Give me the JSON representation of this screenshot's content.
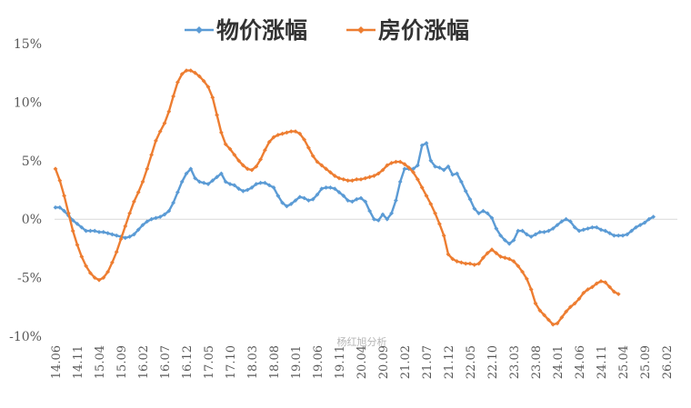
{
  "chart_data": {
    "type": "line",
    "watermark": "杨红旭分析",
    "ylim": [
      -10,
      15
    ],
    "yticks": [
      -10,
      -5,
      0,
      5,
      10,
      15
    ],
    "ytick_labels": [
      "-10%",
      "-5%",
      "0%",
      "5%",
      "10%",
      "15%"
    ],
    "zero_line": true,
    "legend": "top-center",
    "x_start": "2014-06",
    "x_count": 142,
    "xtick_labels": [
      "14.06",
      "14.11",
      "15.04",
      "15.09",
      "16.02",
      "16.07",
      "16.12",
      "17.05",
      "17.10",
      "18.03",
      "18.08",
      "19.01",
      "19.06",
      "19.11",
      "20.04",
      "20.09",
      "21.02",
      "21.07",
      "21.12",
      "22.05",
      "22.10",
      "23.03",
      "23.08",
      "24.01",
      "24.06",
      "24.11",
      "25.04",
      "25.09",
      "26.02"
    ],
    "series": [
      {
        "name": "物价涨幅",
        "color": "#5B9BD5",
        "points": [
          [
            0,
            1.0
          ],
          [
            1,
            1.0
          ],
          [
            2,
            0.7
          ],
          [
            3,
            0.3
          ],
          [
            4,
            -0.1
          ],
          [
            5,
            -0.4
          ],
          [
            6,
            -0.7
          ],
          [
            7,
            -1.0
          ],
          [
            8,
            -1.0
          ],
          [
            9,
            -1.0
          ],
          [
            10,
            -1.1
          ],
          [
            11,
            -1.1
          ],
          [
            12,
            -1.2
          ],
          [
            13,
            -1.3
          ],
          [
            14,
            -1.4
          ],
          [
            15,
            -1.5
          ],
          [
            16,
            -1.6
          ],
          [
            17,
            -1.5
          ],
          [
            18,
            -1.3
          ],
          [
            19,
            -0.9
          ],
          [
            20,
            -0.5
          ],
          [
            21,
            -0.2
          ],
          [
            22,
            0.0
          ],
          [
            23,
            0.1
          ],
          [
            24,
            0.2
          ],
          [
            25,
            0.4
          ],
          [
            26,
            0.7
          ],
          [
            27,
            1.4
          ],
          [
            28,
            2.3
          ],
          [
            29,
            3.2
          ],
          [
            30,
            3.9
          ],
          [
            31,
            4.3
          ],
          [
            32,
            3.5
          ],
          [
            33,
            3.2
          ],
          [
            34,
            3.1
          ],
          [
            35,
            3.0
          ],
          [
            36,
            3.3
          ],
          [
            37,
            3.6
          ],
          [
            38,
            3.9
          ],
          [
            39,
            3.2
          ],
          [
            40,
            3.0
          ],
          [
            41,
            2.9
          ],
          [
            42,
            2.6
          ],
          [
            43,
            2.4
          ],
          [
            44,
            2.5
          ],
          [
            45,
            2.7
          ],
          [
            46,
            3.0
          ],
          [
            47,
            3.1
          ],
          [
            48,
            3.1
          ],
          [
            49,
            2.9
          ],
          [
            50,
            2.7
          ],
          [
            51,
            2.0
          ],
          [
            52,
            1.4
          ],
          [
            53,
            1.1
          ],
          [
            54,
            1.3
          ],
          [
            55,
            1.6
          ],
          [
            56,
            1.9
          ],
          [
            57,
            1.8
          ],
          [
            58,
            1.6
          ],
          [
            59,
            1.7
          ],
          [
            60,
            2.1
          ],
          [
            61,
            2.6
          ],
          [
            62,
            2.7
          ],
          [
            63,
            2.7
          ],
          [
            64,
            2.6
          ],
          [
            65,
            2.3
          ],
          [
            66,
            2.0
          ],
          [
            67,
            1.6
          ],
          [
            68,
            1.5
          ],
          [
            69,
            1.7
          ],
          [
            70,
            1.8
          ],
          [
            71,
            1.5
          ],
          [
            72,
            0.7
          ],
          [
            73,
            0.0
          ],
          [
            74,
            -0.1
          ],
          [
            75,
            0.4
          ],
          [
            76,
            0.0
          ],
          [
            77,
            0.5
          ],
          [
            78,
            1.6
          ],
          [
            79,
            3.2
          ],
          [
            80,
            4.3
          ],
          [
            81,
            4.3
          ],
          [
            82,
            4.3
          ],
          [
            83,
            4.6
          ],
          [
            84,
            6.3
          ],
          [
            85,
            6.5
          ],
          [
            86,
            5.0
          ],
          [
            87,
            4.5
          ],
          [
            88,
            4.4
          ],
          [
            89,
            4.2
          ],
          [
            90,
            4.5
          ],
          [
            91,
            3.8
          ],
          [
            92,
            3.9
          ],
          [
            93,
            3.2
          ],
          [
            94,
            2.4
          ],
          [
            95,
            1.7
          ],
          [
            96,
            0.9
          ],
          [
            97,
            0.5
          ],
          [
            98,
            0.7
          ],
          [
            99,
            0.5
          ],
          [
            100,
            0.1
          ],
          [
            101,
            -0.8
          ],
          [
            102,
            -1.4
          ],
          [
            103,
            -1.8
          ],
          [
            104,
            -2.1
          ],
          [
            105,
            -1.8
          ],
          [
            106,
            -1.0
          ],
          [
            107,
            -1.0
          ],
          [
            108,
            -1.3
          ],
          [
            109,
            -1.5
          ],
          [
            110,
            -1.3
          ],
          [
            111,
            -1.1
          ],
          [
            112,
            -1.1
          ],
          [
            113,
            -1.0
          ],
          [
            114,
            -0.8
          ],
          [
            115,
            -0.5
          ],
          [
            116,
            -0.2
          ],
          [
            117,
            0.0
          ],
          [
            118,
            -0.2
          ],
          [
            119,
            -0.7
          ],
          [
            120,
            -1.0
          ],
          [
            121,
            -0.9
          ],
          [
            122,
            -0.8
          ],
          [
            123,
            -0.7
          ],
          [
            124,
            -0.7
          ],
          [
            125,
            -0.9
          ],
          [
            126,
            -1.0
          ],
          [
            127,
            -1.2
          ],
          [
            128,
            -1.4
          ],
          [
            129,
            -1.4
          ],
          [
            130,
            -1.4
          ],
          [
            131,
            -1.3
          ],
          [
            132,
            -1.0
          ],
          [
            133,
            -0.7
          ],
          [
            134,
            -0.5
          ],
          [
            135,
            -0.3
          ],
          [
            136,
            0.0
          ],
          [
            137,
            0.2
          ]
        ]
      },
      {
        "name": "房价涨幅",
        "color": "#ED7D31",
        "points": [
          [
            0,
            4.3
          ],
          [
            1,
            3.3
          ],
          [
            2,
            2.0
          ],
          [
            3,
            0.5
          ],
          [
            4,
            -1.0
          ],
          [
            5,
            -2.2
          ],
          [
            6,
            -3.2
          ],
          [
            7,
            -4.0
          ],
          [
            8,
            -4.6
          ],
          [
            9,
            -5.0
          ],
          [
            10,
            -5.2
          ],
          [
            11,
            -5.0
          ],
          [
            12,
            -4.5
          ],
          [
            13,
            -3.7
          ],
          [
            14,
            -2.8
          ],
          [
            15,
            -1.7
          ],
          [
            16,
            -0.6
          ],
          [
            17,
            0.5
          ],
          [
            18,
            1.5
          ],
          [
            19,
            2.3
          ],
          [
            20,
            3.2
          ],
          [
            21,
            4.3
          ],
          [
            22,
            5.5
          ],
          [
            23,
            6.7
          ],
          [
            24,
            7.5
          ],
          [
            25,
            8.2
          ],
          [
            26,
            9.2
          ],
          [
            27,
            10.5
          ],
          [
            28,
            11.7
          ],
          [
            29,
            12.4
          ],
          [
            30,
            12.7
          ],
          [
            31,
            12.7
          ],
          [
            32,
            12.5
          ],
          [
            33,
            12.2
          ],
          [
            34,
            11.8
          ],
          [
            35,
            11.3
          ],
          [
            36,
            10.4
          ],
          [
            37,
            8.9
          ],
          [
            38,
            7.4
          ],
          [
            39,
            6.4
          ],
          [
            40,
            6.0
          ],
          [
            41,
            5.5
          ],
          [
            42,
            5.0
          ],
          [
            43,
            4.6
          ],
          [
            44,
            4.3
          ],
          [
            45,
            4.2
          ],
          [
            46,
            4.5
          ],
          [
            47,
            5.1
          ],
          [
            48,
            5.9
          ],
          [
            49,
            6.6
          ],
          [
            50,
            7.0
          ],
          [
            51,
            7.2
          ],
          [
            52,
            7.3
          ],
          [
            53,
            7.4
          ],
          [
            54,
            7.5
          ],
          [
            55,
            7.5
          ],
          [
            56,
            7.3
          ],
          [
            57,
            6.8
          ],
          [
            58,
            6.1
          ],
          [
            59,
            5.4
          ],
          [
            60,
            4.9
          ],
          [
            61,
            4.6
          ],
          [
            62,
            4.3
          ],
          [
            63,
            4.0
          ],
          [
            64,
            3.7
          ],
          [
            65,
            3.5
          ],
          [
            66,
            3.4
          ],
          [
            67,
            3.3
          ],
          [
            68,
            3.3
          ],
          [
            69,
            3.4
          ],
          [
            70,
            3.4
          ],
          [
            71,
            3.5
          ],
          [
            72,
            3.6
          ],
          [
            73,
            3.7
          ],
          [
            74,
            3.9
          ],
          [
            75,
            4.2
          ],
          [
            76,
            4.6
          ],
          [
            77,
            4.8
          ],
          [
            78,
            4.9
          ],
          [
            79,
            4.9
          ],
          [
            80,
            4.7
          ],
          [
            81,
            4.4
          ],
          [
            82,
            4.0
          ],
          [
            83,
            3.4
          ],
          [
            84,
            2.7
          ],
          [
            85,
            2.0
          ],
          [
            86,
            1.3
          ],
          [
            87,
            0.5
          ],
          [
            88,
            -0.4
          ],
          [
            89,
            -1.4
          ],
          [
            90,
            -3.0
          ],
          [
            91,
            -3.4
          ],
          [
            92,
            -3.6
          ],
          [
            93,
            -3.7
          ],
          [
            94,
            -3.8
          ],
          [
            95,
            -3.8
          ],
          [
            96,
            -3.9
          ],
          [
            97,
            -3.8
          ],
          [
            98,
            -3.3
          ],
          [
            99,
            -2.9
          ],
          [
            100,
            -2.6
          ],
          [
            101,
            -2.9
          ],
          [
            102,
            -3.2
          ],
          [
            103,
            -3.3
          ],
          [
            104,
            -3.4
          ],
          [
            105,
            -3.6
          ],
          [
            106,
            -4.0
          ],
          [
            107,
            -4.5
          ],
          [
            108,
            -5.1
          ],
          [
            109,
            -6.0
          ],
          [
            110,
            -7.2
          ],
          [
            111,
            -7.8
          ],
          [
            112,
            -8.2
          ],
          [
            113,
            -8.6
          ],
          [
            114,
            -9.0
          ],
          [
            115,
            -8.9
          ],
          [
            116,
            -8.4
          ],
          [
            117,
            -7.9
          ],
          [
            118,
            -7.5
          ],
          [
            119,
            -7.2
          ],
          [
            120,
            -6.8
          ],
          [
            121,
            -6.3
          ],
          [
            122,
            -6.0
          ],
          [
            123,
            -5.8
          ],
          [
            124,
            -5.5
          ],
          [
            125,
            -5.3
          ],
          [
            126,
            -5.4
          ],
          [
            127,
            -5.8
          ],
          [
            128,
            -6.2
          ],
          [
            129,
            -6.4
          ]
        ]
      }
    ]
  }
}
